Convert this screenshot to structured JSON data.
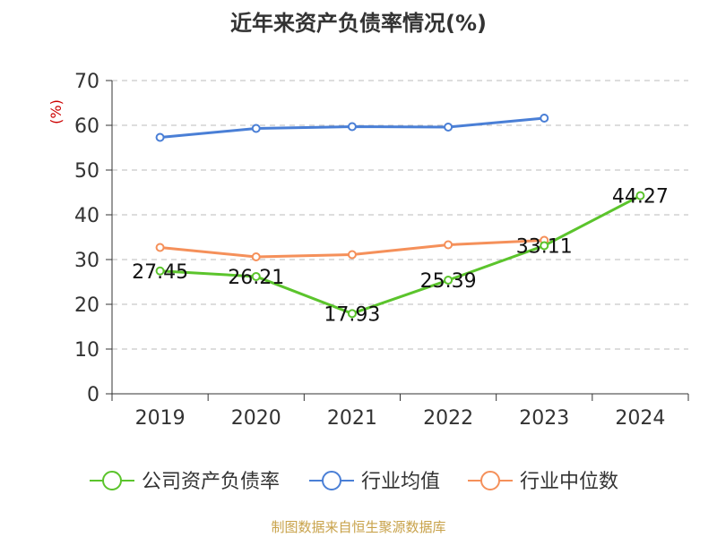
{
  "chart_data": {
    "type": "line",
    "title": "近年来资产负债率情况(%)",
    "unit_label": "(%)",
    "categories": [
      "2019",
      "2020",
      "2021",
      "2022",
      "2023",
      "2024"
    ],
    "ylim": [
      0,
      70
    ],
    "yticks": [
      0,
      10,
      20,
      30,
      40,
      50,
      60,
      70
    ],
    "grid": true,
    "legend_position": "bottom",
    "series": [
      {
        "name": "公司资产负债率",
        "color": "#5bc42c",
        "values": [
          27.45,
          26.21,
          17.93,
          25.39,
          33.11,
          44.27
        ],
        "show_labels": true
      },
      {
        "name": "行业均值",
        "color": "#4a7fd6",
        "values": [
          57.3,
          59.3,
          59.7,
          59.6,
          61.6,
          null
        ],
        "show_labels": false
      },
      {
        "name": "行业中位数",
        "color": "#f5905a",
        "values": [
          32.7,
          30.6,
          31.1,
          33.3,
          34.3,
          null
        ],
        "show_labels": false
      }
    ],
    "data_labels": [
      "27.45",
      "26.21",
      "17.93",
      "25.39",
      "33.11",
      "44.27"
    ]
  },
  "source_text": "制图数据来自恒生聚源数据库"
}
